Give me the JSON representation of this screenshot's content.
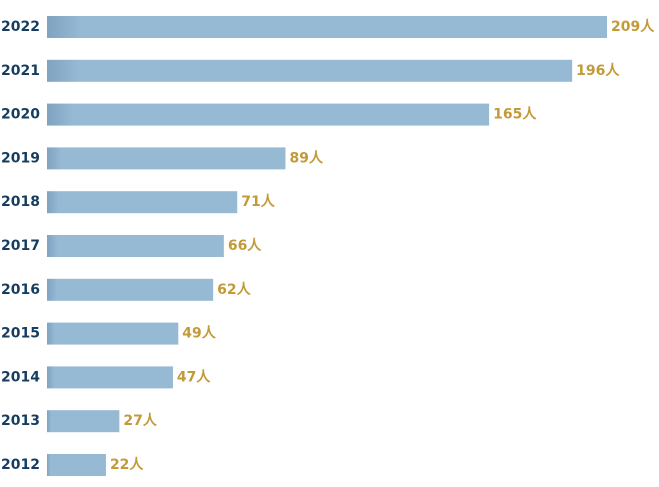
{
  "colors": {
    "bar": "#96b9d4",
    "bar_shade": "#7fa3c0",
    "year_text": "#163d5f",
    "value_text": "#c39a38",
    "background": "#ffffff"
  },
  "chart_data": {
    "type": "bar",
    "orientation": "horizontal",
    "categories": [
      "2022",
      "2021",
      "2020",
      "2019",
      "2018",
      "2017",
      "2016",
      "2015",
      "2014",
      "2013",
      "2012"
    ],
    "values": [
      209,
      196,
      165,
      89,
      71,
      66,
      62,
      49,
      47,
      27,
      22
    ],
    "value_labels": [
      "209人",
      "196人",
      "165人",
      "89人",
      "71人",
      "66人",
      "62人",
      "49人",
      "47人",
      "27人",
      "22人"
    ],
    "xlim": [
      0,
      209
    ],
    "grid": false,
    "legend": "none"
  }
}
